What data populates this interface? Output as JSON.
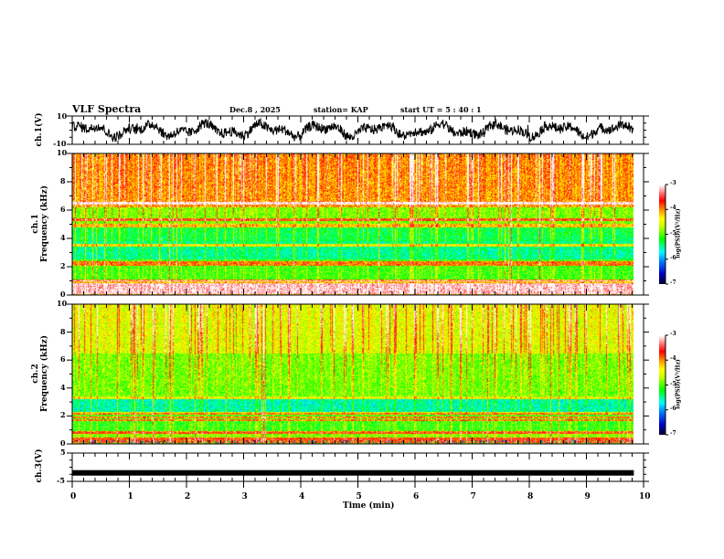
{
  "header": {
    "title": "VLF Spectra",
    "date": "Dec.8  , 2025",
    "station": "station= KAP",
    "start": "start  UT =   5  : 40 : 1"
  },
  "colors": {
    "colormap": [
      "#000033",
      "#0000ff",
      "#00ffff",
      "#00ff00",
      "#ffff00",
      "#ff0000",
      "#ffffff"
    ],
    "trace": "#000000"
  },
  "chart_data": [
    {
      "type": "line",
      "name": "ch1-waveform",
      "ylabel": "ch.1(V)",
      "ylim": [
        -10,
        10
      ],
      "yticks": [
        "10",
        "-10"
      ],
      "xlim": [
        0,
        10
      ],
      "x_end_data": 9.83,
      "description_values": "noisy waveform fluctuating roughly between -8 and +8 V with slow oscillations"
    },
    {
      "type": "heatmap",
      "name": "ch1-spectrogram",
      "ylabel_line1": "ch.1",
      "ylabel_line2": "Frequency  (kHz)",
      "ylim": [
        0,
        10
      ],
      "yticks": [
        "0",
        "2",
        "4",
        "6",
        "8",
        "10"
      ],
      "xlim": [
        0,
        10
      ],
      "colorbar": {
        "label": "log(PSD)(V²/Hz)",
        "range": [
          -7,
          -3
        ],
        "ticks": [
          "-3",
          "-4",
          "-5",
          "-6",
          "-7"
        ]
      }
    },
    {
      "type": "heatmap",
      "name": "ch2-spectrogram",
      "ylabel_line1": "ch.2",
      "ylabel_line2": "Frequency  (kHz)",
      "ylim": [
        0,
        10
      ],
      "yticks": [
        "0",
        "2",
        "4",
        "6",
        "8",
        "10"
      ],
      "xlim": [
        0,
        10
      ],
      "colorbar": {
        "label": "log(PSD)(V²/Hz)",
        "range": [
          -7,
          -3
        ],
        "ticks": [
          "-3",
          "-4",
          "-5",
          "-6",
          "-7"
        ]
      }
    },
    {
      "type": "line",
      "name": "ch3-waveform",
      "ylabel": "ch.3(V)",
      "ylim": [
        -5,
        5
      ],
      "yticks": [
        "5",
        "-5"
      ],
      "xlim": [
        0,
        10
      ],
      "level_value": -2,
      "x_end_data": 9.83
    }
  ],
  "xaxis": {
    "label": "Time  (min)",
    "ticks": [
      "0",
      "1",
      "2",
      "3",
      "4",
      "5",
      "6",
      "7",
      "8",
      "9",
      "10"
    ]
  }
}
